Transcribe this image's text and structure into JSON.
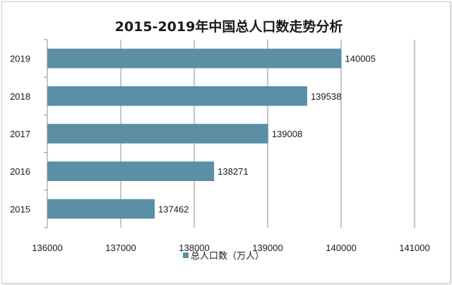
{
  "chart_data": {
    "type": "bar",
    "orientation": "horizontal",
    "title": "2015-2019年中国总人口数走势分析",
    "categories": [
      "2015",
      "2016",
      "2017",
      "2018",
      "2019"
    ],
    "series": [
      {
        "name": "总人口数（万人）",
        "values": [
          137462,
          138271,
          139008,
          139538,
          140005
        ],
        "color": "#5b8fa5"
      }
    ],
    "xlim": [
      136000,
      141000
    ],
    "xticks": [
      "136000",
      "137000",
      "138000",
      "139000",
      "140000",
      "141000"
    ],
    "grid": true,
    "legend": "bottom"
  }
}
